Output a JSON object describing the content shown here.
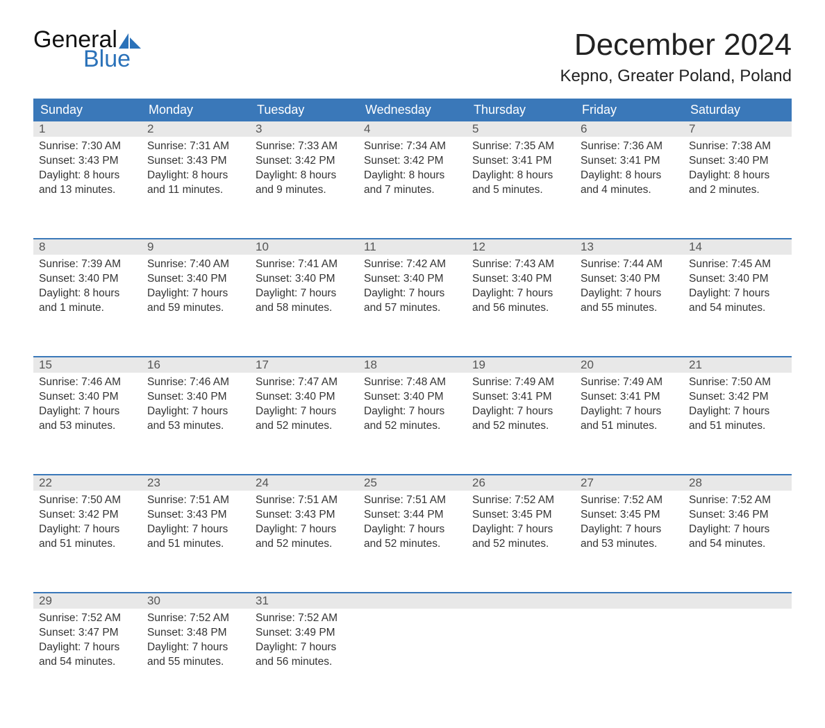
{
  "logo": {
    "word1": "General",
    "word2": "Blue",
    "sail_color": "#2b72b9"
  },
  "title": "December 2024",
  "location": "Kepno, Greater Poland, Poland",
  "colors": {
    "header_bg": "#3a78b9",
    "header_text": "#ffffff",
    "daynum_bg": "#e8e8e8",
    "week_border": "#3a78b9",
    "body_text": "#333333",
    "page_bg": "#ffffff"
  },
  "fonts": {
    "title_pt": 44,
    "location_pt": 24,
    "dayhead_pt": 18,
    "daynum_pt": 17,
    "cell_pt": 15.5
  },
  "day_names": [
    "Sunday",
    "Monday",
    "Tuesday",
    "Wednesday",
    "Thursday",
    "Friday",
    "Saturday"
  ],
  "weeks": [
    [
      {
        "n": "1",
        "sunrise": "Sunrise: 7:30 AM",
        "sunset": "Sunset: 3:43 PM",
        "d1": "Daylight: 8 hours",
        "d2": "and 13 minutes."
      },
      {
        "n": "2",
        "sunrise": "Sunrise: 7:31 AM",
        "sunset": "Sunset: 3:43 PM",
        "d1": "Daylight: 8 hours",
        "d2": "and 11 minutes."
      },
      {
        "n": "3",
        "sunrise": "Sunrise: 7:33 AM",
        "sunset": "Sunset: 3:42 PM",
        "d1": "Daylight: 8 hours",
        "d2": "and 9 minutes."
      },
      {
        "n": "4",
        "sunrise": "Sunrise: 7:34 AM",
        "sunset": "Sunset: 3:42 PM",
        "d1": "Daylight: 8 hours",
        "d2": "and 7 minutes."
      },
      {
        "n": "5",
        "sunrise": "Sunrise: 7:35 AM",
        "sunset": "Sunset: 3:41 PM",
        "d1": "Daylight: 8 hours",
        "d2": "and 5 minutes."
      },
      {
        "n": "6",
        "sunrise": "Sunrise: 7:36 AM",
        "sunset": "Sunset: 3:41 PM",
        "d1": "Daylight: 8 hours",
        "d2": "and 4 minutes."
      },
      {
        "n": "7",
        "sunrise": "Sunrise: 7:38 AM",
        "sunset": "Sunset: 3:40 PM",
        "d1": "Daylight: 8 hours",
        "d2": "and 2 minutes."
      }
    ],
    [
      {
        "n": "8",
        "sunrise": "Sunrise: 7:39 AM",
        "sunset": "Sunset: 3:40 PM",
        "d1": "Daylight: 8 hours",
        "d2": "and 1 minute."
      },
      {
        "n": "9",
        "sunrise": "Sunrise: 7:40 AM",
        "sunset": "Sunset: 3:40 PM",
        "d1": "Daylight: 7 hours",
        "d2": "and 59 minutes."
      },
      {
        "n": "10",
        "sunrise": "Sunrise: 7:41 AM",
        "sunset": "Sunset: 3:40 PM",
        "d1": "Daylight: 7 hours",
        "d2": "and 58 minutes."
      },
      {
        "n": "11",
        "sunrise": "Sunrise: 7:42 AM",
        "sunset": "Sunset: 3:40 PM",
        "d1": "Daylight: 7 hours",
        "d2": "and 57 minutes."
      },
      {
        "n": "12",
        "sunrise": "Sunrise: 7:43 AM",
        "sunset": "Sunset: 3:40 PM",
        "d1": "Daylight: 7 hours",
        "d2": "and 56 minutes."
      },
      {
        "n": "13",
        "sunrise": "Sunrise: 7:44 AM",
        "sunset": "Sunset: 3:40 PM",
        "d1": "Daylight: 7 hours",
        "d2": "and 55 minutes."
      },
      {
        "n": "14",
        "sunrise": "Sunrise: 7:45 AM",
        "sunset": "Sunset: 3:40 PM",
        "d1": "Daylight: 7 hours",
        "d2": "and 54 minutes."
      }
    ],
    [
      {
        "n": "15",
        "sunrise": "Sunrise: 7:46 AM",
        "sunset": "Sunset: 3:40 PM",
        "d1": "Daylight: 7 hours",
        "d2": "and 53 minutes."
      },
      {
        "n": "16",
        "sunrise": "Sunrise: 7:46 AM",
        "sunset": "Sunset: 3:40 PM",
        "d1": "Daylight: 7 hours",
        "d2": "and 53 minutes."
      },
      {
        "n": "17",
        "sunrise": "Sunrise: 7:47 AM",
        "sunset": "Sunset: 3:40 PM",
        "d1": "Daylight: 7 hours",
        "d2": "and 52 minutes."
      },
      {
        "n": "18",
        "sunrise": "Sunrise: 7:48 AM",
        "sunset": "Sunset: 3:40 PM",
        "d1": "Daylight: 7 hours",
        "d2": "and 52 minutes."
      },
      {
        "n": "19",
        "sunrise": "Sunrise: 7:49 AM",
        "sunset": "Sunset: 3:41 PM",
        "d1": "Daylight: 7 hours",
        "d2": "and 52 minutes."
      },
      {
        "n": "20",
        "sunrise": "Sunrise: 7:49 AM",
        "sunset": "Sunset: 3:41 PM",
        "d1": "Daylight: 7 hours",
        "d2": "and 51 minutes."
      },
      {
        "n": "21",
        "sunrise": "Sunrise: 7:50 AM",
        "sunset": "Sunset: 3:42 PM",
        "d1": "Daylight: 7 hours",
        "d2": "and 51 minutes."
      }
    ],
    [
      {
        "n": "22",
        "sunrise": "Sunrise: 7:50 AM",
        "sunset": "Sunset: 3:42 PM",
        "d1": "Daylight: 7 hours",
        "d2": "and 51 minutes."
      },
      {
        "n": "23",
        "sunrise": "Sunrise: 7:51 AM",
        "sunset": "Sunset: 3:43 PM",
        "d1": "Daylight: 7 hours",
        "d2": "and 51 minutes."
      },
      {
        "n": "24",
        "sunrise": "Sunrise: 7:51 AM",
        "sunset": "Sunset: 3:43 PM",
        "d1": "Daylight: 7 hours",
        "d2": "and 52 minutes."
      },
      {
        "n": "25",
        "sunrise": "Sunrise: 7:51 AM",
        "sunset": "Sunset: 3:44 PM",
        "d1": "Daylight: 7 hours",
        "d2": "and 52 minutes."
      },
      {
        "n": "26",
        "sunrise": "Sunrise: 7:52 AM",
        "sunset": "Sunset: 3:45 PM",
        "d1": "Daylight: 7 hours",
        "d2": "and 52 minutes."
      },
      {
        "n": "27",
        "sunrise": "Sunrise: 7:52 AM",
        "sunset": "Sunset: 3:45 PM",
        "d1": "Daylight: 7 hours",
        "d2": "and 53 minutes."
      },
      {
        "n": "28",
        "sunrise": "Sunrise: 7:52 AM",
        "sunset": "Sunset: 3:46 PM",
        "d1": "Daylight: 7 hours",
        "d2": "and 54 minutes."
      }
    ],
    [
      {
        "n": "29",
        "sunrise": "Sunrise: 7:52 AM",
        "sunset": "Sunset: 3:47 PM",
        "d1": "Daylight: 7 hours",
        "d2": "and 54 minutes."
      },
      {
        "n": "30",
        "sunrise": "Sunrise: 7:52 AM",
        "sunset": "Sunset: 3:48 PM",
        "d1": "Daylight: 7 hours",
        "d2": "and 55 minutes."
      },
      {
        "n": "31",
        "sunrise": "Sunrise: 7:52 AM",
        "sunset": "Sunset: 3:49 PM",
        "d1": "Daylight: 7 hours",
        "d2": "and 56 minutes."
      },
      {
        "n": "",
        "sunrise": "",
        "sunset": "",
        "d1": "",
        "d2": ""
      },
      {
        "n": "",
        "sunrise": "",
        "sunset": "",
        "d1": "",
        "d2": ""
      },
      {
        "n": "",
        "sunrise": "",
        "sunset": "",
        "d1": "",
        "d2": ""
      },
      {
        "n": "",
        "sunrise": "",
        "sunset": "",
        "d1": "",
        "d2": ""
      }
    ]
  ]
}
